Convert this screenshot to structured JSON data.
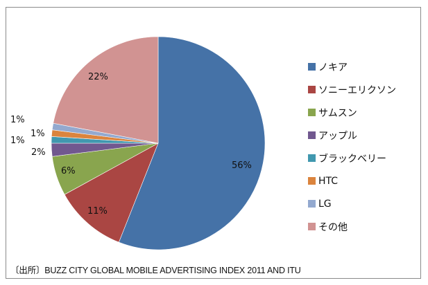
{
  "chart_data": {
    "type": "pie",
    "title": "",
    "start_angle_deg": 0,
    "direction": "clockwise",
    "categories": [
      "ノキア",
      "ソニーエリクソン",
      "サムスン",
      "アップル",
      "ブラックベリー",
      "HTC",
      "LG",
      "その他"
    ],
    "values": [
      56,
      11,
      6,
      2,
      1,
      1,
      1,
      22
    ],
    "labels": [
      "56%",
      "11%",
      "6%",
      "2%",
      "1%",
      "1%",
      "1%",
      "22%"
    ],
    "colors": [
      "#4572a7",
      "#aa4643",
      "#89a54e",
      "#71588f",
      "#4198af",
      "#db843d",
      "#93a9cf",
      "#d19392"
    ],
    "legend_position": "right"
  },
  "legend": {
    "items": [
      {
        "label": "ノキア",
        "color": "#4572a7"
      },
      {
        "label": "ソニーエリクソン",
        "color": "#aa4643"
      },
      {
        "label": "サムスン",
        "color": "#89a54e"
      },
      {
        "label": "アップル",
        "color": "#71588f"
      },
      {
        "label": "ブラックベリー",
        "color": "#4198af"
      },
      {
        "label": "HTC",
        "color": "#db843d"
      },
      {
        "label": "LG",
        "color": "#93a9cf"
      },
      {
        "label": "その他",
        "color": "#d19392"
      }
    ]
  },
  "data_labels": {
    "nokia": "56%",
    "sony": "11%",
    "samsung": "6%",
    "apple": "2%",
    "blackberry": "1%",
    "htc": "1%",
    "lg": "1%",
    "other": "22%"
  },
  "source": "〔出所〕BUZZ CITY GLOBAL MOBILE ADVERTISING INDEX 2011 AND ITU"
}
